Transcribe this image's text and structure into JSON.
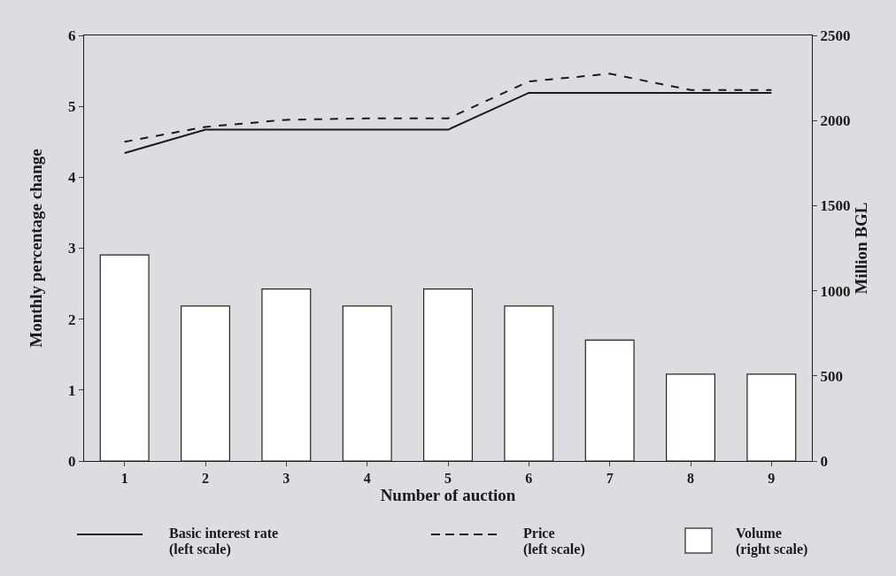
{
  "chart_data": {
    "type": "bar",
    "xlabel": "Number of auction",
    "ylabel": "Monthly percentage change",
    "y2label": "Million BGL",
    "categories": [
      "1",
      "2",
      "3",
      "4",
      "5",
      "6",
      "7",
      "8",
      "9"
    ],
    "series": [
      {
        "name": "Basic interest rate\n(left scale)",
        "type": "line",
        "line_style": "solid",
        "color": "#1a1a1a",
        "values": [
          4.34,
          4.67,
          4.67,
          4.67,
          4.67,
          5.19,
          5.19,
          5.19,
          5.19
        ]
      },
      {
        "name": "Price\n(left scale)",
        "type": "line",
        "line_style": "dashed",
        "color": "#1a1a1a",
        "values": [
          4.5,
          4.71,
          4.81,
          4.83,
          4.83,
          5.35,
          5.46,
          5.23,
          5.23
        ]
      },
      {
        "name": "Volume\n(right scale)",
        "axis": "y2",
        "color": "#ffffff",
        "values": [
          1210,
          910,
          1010,
          910,
          1010,
          910,
          710,
          510,
          510
        ]
      }
    ],
    "ylim": [
      0,
      6
    ],
    "yticks": [
      0,
      1,
      2,
      3,
      4,
      5,
      6
    ],
    "y2lim": [
      0,
      2500
    ],
    "y2ticks": [
      0,
      500,
      1000,
      1500,
      2000,
      2500
    ],
    "grid": false,
    "legend": "bottom",
    "marker": "none"
  }
}
